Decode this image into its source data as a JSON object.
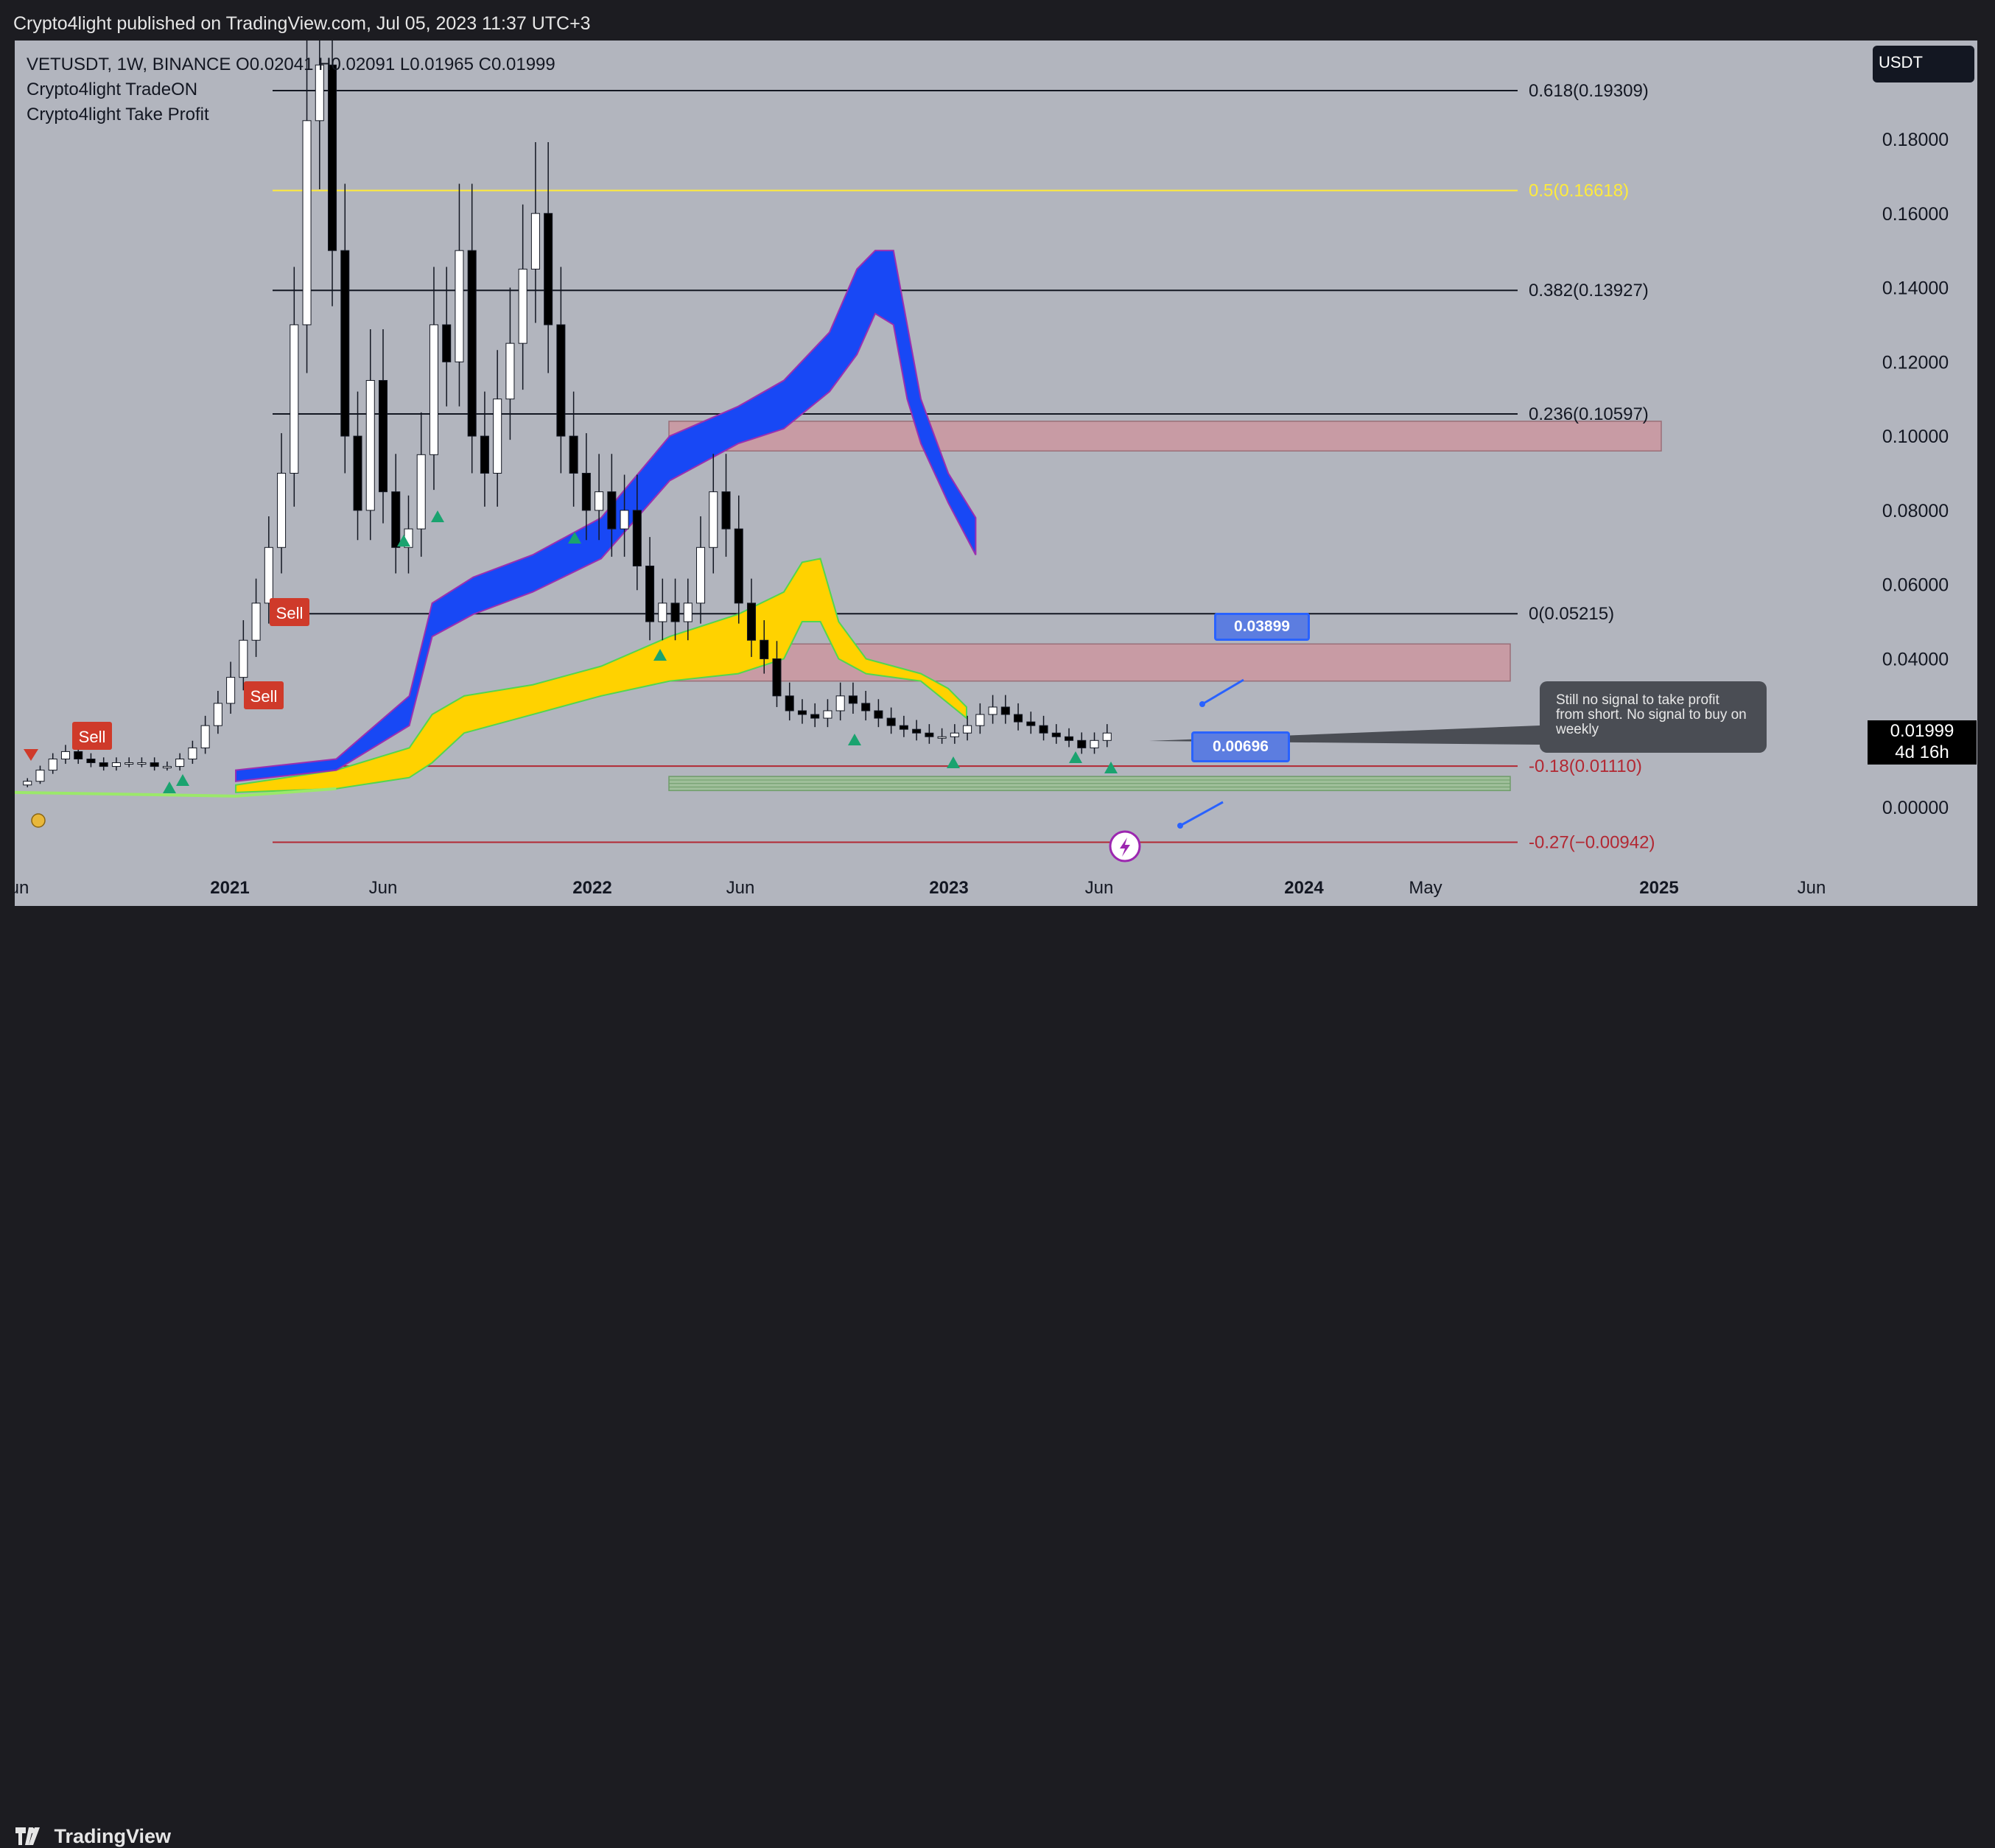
{
  "header": {
    "published": "Crypto4light published on TradingView.com, Jul 05, 2023 11:37 UTC+3"
  },
  "legend": {
    "symbol_line": "VETUSDT, 1W, BINANCE  O0.02041  H0.02091  L0.01965  C0.01999",
    "indicator1": "Crypto4light TradeON",
    "indicator2": "Crypto4light Take Profit"
  },
  "currency_button": "USDT",
  "last_price": {
    "value": "0.01999",
    "countdown": "4d 16h"
  },
  "note_text": "Still no signal to take profit from short. No signal to buy on weekly",
  "footer": {
    "brand": "TradingView"
  },
  "colors": {
    "background": "#b2b5be",
    "blue_band": "#1848f5",
    "yellow_band": "#ffd200",
    "red_zone": "#c89ba4",
    "green_zone": "#9fbf9a",
    "fib_gold": "#ffeb3b",
    "fib_red": "#b22833",
    "sell": "#cf3a2a",
    "buy_arrow": "#1aa36f"
  },
  "chart_data": {
    "type": "candlestick",
    "symbol": "VETUSDT",
    "interval": "1W",
    "exchange": "BINANCE",
    "ohlc_last": {
      "open": 0.02041,
      "high": 0.02091,
      "low": 0.01965,
      "close": 0.01999
    },
    "y_axis": {
      "ticks": [
        "0.18000",
        "0.16000",
        "0.14000",
        "0.12000",
        "0.10000",
        "0.08000",
        "0.06000",
        "0.04000",
        "0.00000"
      ],
      "ylim": [
        -0.012,
        0.2
      ],
      "tick_values": [
        0.18,
        0.16,
        0.14,
        0.12,
        0.1,
        0.08,
        0.06,
        0.04,
        0.0
      ]
    },
    "x_axis": {
      "ticks": [
        {
          "label": "Jun",
          "bold": false
        },
        {
          "label": "2021",
          "bold": true
        },
        {
          "label": "Jun",
          "bold": false
        },
        {
          "label": "2022",
          "bold": true
        },
        {
          "label": "Jun",
          "bold": false
        },
        {
          "label": "2023",
          "bold": true
        },
        {
          "label": "Jun",
          "bold": false
        },
        {
          "label": "2024",
          "bold": true
        },
        {
          "label": "May",
          "bold": false
        },
        {
          "label": "2025",
          "bold": true
        },
        {
          "label": "Jun",
          "bold": false
        }
      ]
    },
    "fib_levels": [
      {
        "label": "0.618(0.19309)",
        "value": 0.19309,
        "color": "black"
      },
      {
        "label": "0.5(0.16618)",
        "value": 0.16618,
        "color": "gold"
      },
      {
        "label": "0.382(0.13927)",
        "value": 0.13927,
        "color": "black"
      },
      {
        "label": "0.236(0.10597)",
        "value": 0.10597,
        "color": "black"
      },
      {
        "label": "0(0.05215)",
        "value": 0.05215,
        "color": "black"
      },
      {
        "label": "-0.18(0.01110)",
        "value": 0.0111,
        "color": "red"
      },
      {
        "label": "-0.27(−0.00942)",
        "value": -0.00942,
        "color": "red"
      }
    ],
    "zones": [
      {
        "name": "upper-resistance",
        "low": 0.096,
        "high": 0.104
      },
      {
        "name": "lower-resistance",
        "low": 0.034,
        "high": 0.044
      },
      {
        "name": "support",
        "low": 0.0045,
        "high": 0.0083
      }
    ],
    "callouts": [
      {
        "label": "0.03899",
        "value": 0.03899
      },
      {
        "label": "0.00696",
        "value": 0.00696
      }
    ],
    "signals": {
      "sell_label": "Sell",
      "sell_count": 3,
      "buy_arrows": 11
    },
    "price_path": [
      0.006,
      0.007,
      0.01,
      0.013,
      0.015,
      0.013,
      0.012,
      0.011,
      0.012,
      0.012,
      0.012,
      0.011,
      0.011,
      0.013,
      0.016,
      0.022,
      0.028,
      0.035,
      0.045,
      0.055,
      0.07,
      0.09,
      0.13,
      0.185,
      0.2,
      0.15,
      0.1,
      0.08,
      0.115,
      0.085,
      0.07,
      0.075,
      0.095,
      0.13,
      0.12,
      0.15,
      0.1,
      0.09,
      0.11,
      0.125,
      0.145,
      0.16,
      0.13,
      0.1,
      0.09,
      0.08,
      0.085,
      0.075,
      0.08,
      0.065,
      0.05,
      0.055,
      0.05,
      0.055,
      0.07,
      0.085,
      0.075,
      0.055,
      0.045,
      0.04,
      0.03,
      0.026,
      0.025,
      0.024,
      0.026,
      0.03,
      0.028,
      0.026,
      0.024,
      0.022,
      0.021,
      0.02,
      0.019,
      0.019,
      0.02,
      0.022,
      0.025,
      0.027,
      0.025,
      0.023,
      0.022,
      0.02,
      0.019,
      0.018,
      0.016,
      0.018,
      0.02
    ]
  }
}
